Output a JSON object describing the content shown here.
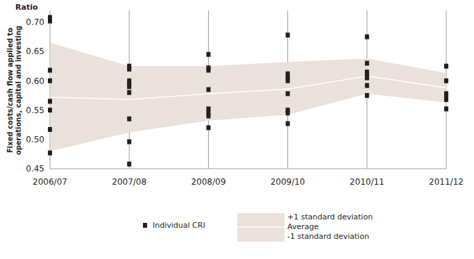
{
  "chart_data": {
    "type": "scatter",
    "annotations": [
      {
        "text": "Ratio"
      }
    ],
    "ylabel": [
      "Fixed costs/cash flow applied to",
      "operations, capital and investing"
    ],
    "categories": [
      "2006/07",
      "2007/08",
      "2008/09",
      "2009/10",
      "2010/11",
      "2011/12"
    ],
    "ylim": [
      0.45,
      0.72
    ],
    "yticks": [
      0.45,
      {
        "value": 0.5,
        "label": "0.50"
      },
      0.55,
      {
        "value": 0.6,
        "label": "0.60"
      },
      0.65,
      {
        "value": 0.7,
        "label": "0.70"
      }
    ],
    "grid": true,
    "legend": "bottom",
    "series": [
      {
        "name": "Individual CRI",
        "type": "scatter",
        "marker": "square",
        "color": "#231f20",
        "x": [
          "2006/07",
          "2006/07",
          "2006/07",
          "2006/07",
          "2006/07",
          "2006/07",
          "2006/07",
          "2006/07",
          "2007/08",
          "2007/08",
          "2007/08",
          "2007/08",
          "2007/08",
          "2007/08",
          "2007/08",
          "2007/08",
          "2007/08",
          "2008/09",
          "2008/09",
          "2008/09",
          "2008/09",
          "2008/09",
          "2008/09",
          "2008/09",
          "2008/09",
          "2009/10",
          "2009/10",
          "2009/10",
          "2009/10",
          "2009/10",
          "2009/10",
          "2009/10",
          "2009/10",
          "2010/11",
          "2010/11",
          "2010/11",
          "2010/11",
          "2010/11",
          "2010/11",
          "2010/11",
          "2011/12",
          "2011/12",
          "2011/12",
          "2011/12",
          "2011/12",
          "2011/12"
        ],
        "values": [
          0.708,
          0.702,
          0.618,
          0.6,
          0.565,
          0.55,
          0.517,
          0.477,
          0.625,
          0.62,
          0.6,
          0.595,
          0.59,
          0.58,
          0.535,
          0.496,
          0.458,
          0.645,
          0.622,
          0.618,
          0.585,
          0.552,
          0.545,
          0.54,
          0.52,
          0.678,
          0.612,
          0.605,
          0.6,
          0.578,
          0.55,
          0.545,
          0.527,
          0.675,
          0.63,
          0.615,
          0.61,
          0.605,
          0.592,
          0.575,
          0.625,
          0.6,
          0.578,
          0.572,
          0.568,
          0.552
        ]
      },
      {
        "name": "+1 standard deviation",
        "type": "area",
        "color": "#eae0dc",
        "values": [
          0.665,
          0.625,
          0.625,
          0.632,
          0.638,
          0.613
        ]
      },
      {
        "name": "Average",
        "type": "line",
        "color": "#ffffff",
        "values": [
          0.572,
          0.568,
          0.578,
          0.586,
          0.608,
          0.588
        ]
      },
      {
        "name": "-1 standard deviation",
        "type": "area",
        "color": "#eae0dc",
        "values": [
          0.48,
          0.512,
          0.532,
          0.542,
          0.578,
          0.563
        ]
      }
    ]
  }
}
